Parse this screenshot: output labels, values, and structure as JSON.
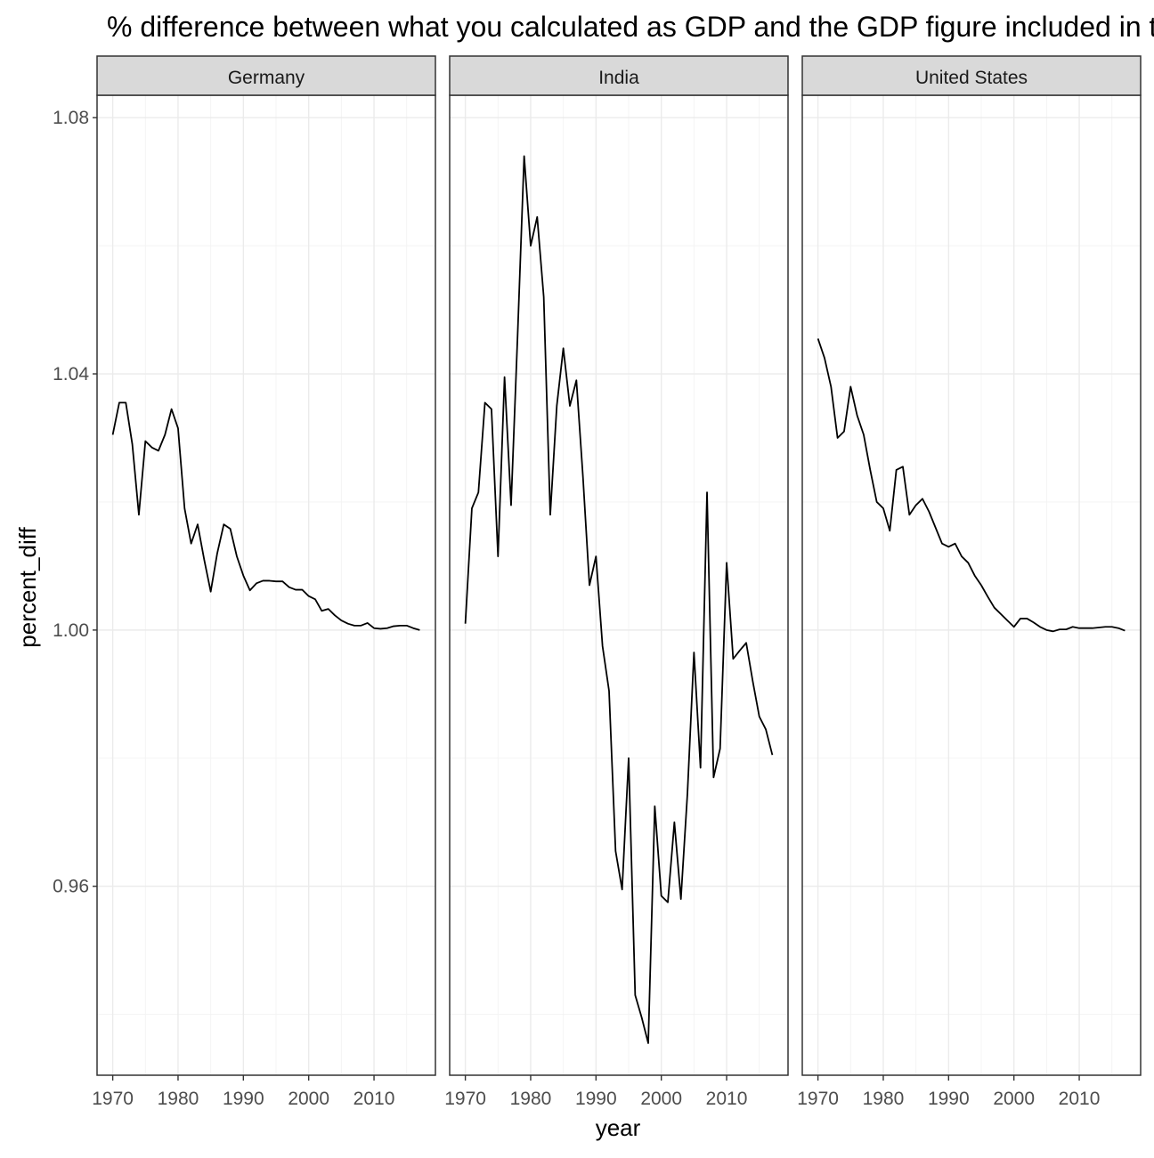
{
  "chart_data": {
    "type": "line",
    "title": "% difference between what you calculated as GDP and the GDP figure included in the dataframe",
    "xlabel": "year",
    "ylabel": "percent_diff",
    "xlim": [
      1967.6,
      2019.4
    ],
    "ylim": [
      0.9305,
      1.0835
    ],
    "x_ticks": [
      1970,
      1980,
      1990,
      2000,
      2010
    ],
    "x_tick_labels": [
      "1970",
      "1980",
      "1990",
      "2000",
      "2010"
    ],
    "y_ticks": [
      0.96,
      1.0,
      1.04,
      1.08
    ],
    "y_tick_labels": [
      "0.96",
      "1.00",
      "1.04",
      "1.08"
    ],
    "grid": true,
    "facets": [
      {
        "name": "Germany",
        "x": [
          1970,
          1971,
          1972,
          1973,
          1974,
          1975,
          1976,
          1977,
          1978,
          1979,
          1980,
          1981,
          1982,
          1983,
          1984,
          1985,
          1986,
          1987,
          1988,
          1989,
          1990,
          1991,
          1992,
          1993,
          1994,
          1995,
          1996,
          1997,
          1998,
          1999,
          2000,
          2001,
          2002,
          2003,
          2004,
          2005,
          2006,
          2007,
          2008,
          2009,
          2010,
          2011,
          2012,
          2013,
          2014,
          2015,
          2016,
          2017
        ],
        "y": [
          1.0305,
          1.0355,
          1.0355,
          1.029,
          1.018,
          1.0295,
          1.0285,
          1.028,
          1.0305,
          1.0345,
          1.0315,
          1.019,
          1.0135,
          1.0165,
          1.011,
          1.006,
          1.012,
          1.0165,
          1.0158,
          1.0115,
          1.0085,
          1.0062,
          1.0073,
          1.0077,
          1.0077,
          1.0076,
          1.0076,
          1.0067,
          1.0063,
          1.0063,
          1.0053,
          1.0048,
          1.003,
          1.0033,
          1.0023,
          1.0015,
          1.001,
          1.0007,
          1.0007,
          1.0011,
          1.0003,
          1.0002,
          1.0003,
          1.0006,
          1.0007,
          1.0007,
          1.0003,
          1.0
        ]
      },
      {
        "name": "India",
        "x": [
          1970,
          1971,
          1972,
          1973,
          1974,
          1975,
          1976,
          1977,
          1978,
          1979,
          1980,
          1981,
          1982,
          1983,
          1984,
          1985,
          1986,
          1987,
          1988,
          1989,
          1990,
          1991,
          1992,
          1993,
          1994,
          1995,
          1996,
          1997,
          1998,
          1999,
          2000,
          2001,
          2002,
          2003,
          2004,
          2005,
          2006,
          2007,
          2008,
          2009,
          2010,
          2011,
          2012,
          2013,
          2014,
          2015,
          2016,
          2017
        ],
        "y": [
          1.001,
          1.019,
          1.0215,
          1.0355,
          1.0345,
          1.0115,
          1.0395,
          1.0195,
          1.046,
          1.074,
          1.06,
          1.0645,
          1.052,
          1.018,
          1.035,
          1.044,
          1.035,
          1.039,
          1.024,
          1.007,
          1.0115,
          0.9975,
          0.9905,
          0.9655,
          0.9595,
          0.98,
          0.943,
          0.9395,
          0.9355,
          0.9725,
          0.9585,
          0.9575,
          0.97,
          0.958,
          0.9745,
          0.9965,
          0.9785,
          1.0215,
          0.977,
          0.9815,
          1.0105,
          0.9955,
          0.9968,
          0.998,
          0.992,
          0.9865,
          0.9845,
          0.9805
        ]
      },
      {
        "name": "United States",
        "x": [
          1970,
          1971,
          1972,
          1973,
          1974,
          1975,
          1976,
          1977,
          1978,
          1979,
          1980,
          1981,
          1982,
          1983,
          1984,
          1985,
          1986,
          1987,
          1988,
          1989,
          1990,
          1991,
          1992,
          1993,
          1994,
          1995,
          1996,
          1997,
          1998,
          1999,
          2000,
          2001,
          2002,
          2003,
          2004,
          2005,
          2006,
          2007,
          2008,
          2009,
          2010,
          2011,
          2012,
          2013,
          2014,
          2015,
          2016,
          2017
        ],
        "y": [
          1.0455,
          1.0425,
          1.038,
          1.03,
          1.031,
          1.038,
          1.0335,
          1.0305,
          1.025,
          1.02,
          1.019,
          1.0155,
          1.025,
          1.0255,
          1.018,
          1.0195,
          1.0205,
          1.0185,
          1.016,
          1.0135,
          1.013,
          1.0135,
          1.0115,
          1.0105,
          1.0085,
          1.007,
          1.0052,
          1.0035,
          1.0025,
          1.0015,
          1.0005,
          1.0018,
          1.0018,
          1.0012,
          1.0005,
          1.0,
          0.9998,
          1.0001,
          1.0001,
          1.0005,
          1.0003,
          1.0003,
          1.0003,
          1.0004,
          1.0005,
          1.0005,
          1.0003,
          0.9999
        ]
      }
    ]
  }
}
